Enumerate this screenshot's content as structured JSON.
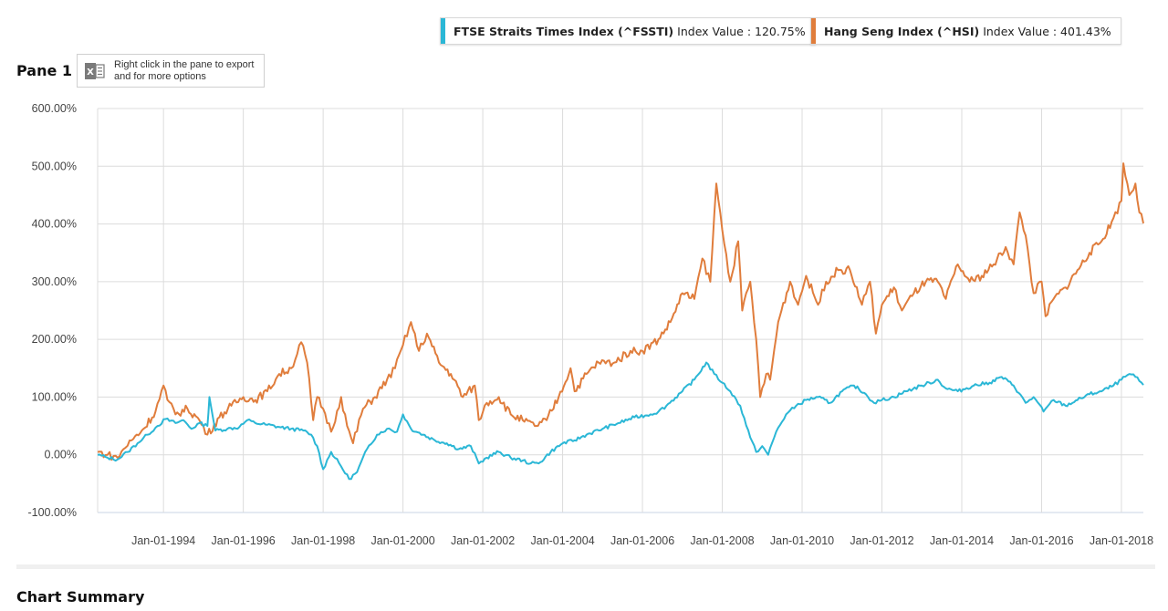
{
  "legend": [
    {
      "name": "FTSE Straits Times Index (^FSSTI)",
      "value_label": "Index Value : 120.75%",
      "color": "#2bb7d6"
    },
    {
      "name": "Hang Seng Index (^HSI)",
      "value_label": "Index Value : 401.43%",
      "color": "#e07d3c"
    }
  ],
  "pane": {
    "title": "Pane 1",
    "export_hint": "Right click in the pane to export and for more options",
    "export_icon": "excel-icon"
  },
  "summary": {
    "title": "Chart Summary"
  },
  "chart_data": {
    "type": "line",
    "title": "",
    "xlabel": "",
    "ylabel": "",
    "x_range": [
      1992.35,
      2018.55
    ],
    "ylim": [
      -100,
      600
    ],
    "y_ticks": [
      600,
      500,
      400,
      300,
      200,
      100,
      0,
      -100
    ],
    "y_tick_labels": [
      "600.00%",
      "500.00%",
      "400.00%",
      "300.00%",
      "200.00%",
      "100.00%",
      "0.00%",
      "-100.00%"
    ],
    "x_ticks": [
      1994,
      1996,
      1998,
      2000,
      2002,
      2004,
      2006,
      2008,
      2010,
      2012,
      2014,
      2016,
      2018
    ],
    "x_tick_labels": [
      "Jan-01-1994",
      "Jan-01-1996",
      "Jan-01-1998",
      "Jan-01-2000",
      "Jan-01-2002",
      "Jan-01-2004",
      "Jan-01-2006",
      "Jan-01-2008",
      "Jan-01-2010",
      "Jan-01-2012",
      "Jan-01-2014",
      "Jan-01-2016",
      "Jan-01-2018"
    ],
    "grid": true,
    "legend_position": "top-right",
    "series": [
      {
        "name": "FTSE Straits Times Index (^FSSTI)",
        "color": "#2bb7d6",
        "final_value": 120.75,
        "x": [
          1992.35,
          1992.6,
          1992.85,
          1993.1,
          1993.35,
          1993.6,
          1993.85,
          1994.05,
          1994.3,
          1994.5,
          1994.7,
          1994.9,
          1995.1,
          1995.15,
          1995.3,
          1995.6,
          1995.9,
          1996.1,
          1996.3,
          1996.6,
          1996.9,
          1997.2,
          1997.5,
          1997.7,
          1997.85,
          1998.0,
          1998.2,
          1998.45,
          1998.65,
          1998.85,
          1999.1,
          1999.35,
          1999.6,
          1999.85,
          2000.0,
          2000.2,
          2000.5,
          2000.8,
          2001.1,
          2001.4,
          2001.7,
          2001.9,
          2002.1,
          2002.4,
          2002.7,
          2003.0,
          2003.2,
          2003.4,
          2003.7,
          2004.0,
          2004.3,
          2004.6,
          2005.0,
          2005.4,
          2005.8,
          2006.2,
          2006.4,
          2006.6,
          2007.0,
          2007.3,
          2007.6,
          2007.8,
          2008.0,
          2008.2,
          2008.45,
          2008.7,
          2008.85,
          2009.0,
          2009.15,
          2009.35,
          2009.6,
          2009.85,
          2010.1,
          2010.4,
          2010.7,
          2011.0,
          2011.3,
          2011.6,
          2011.8,
          2012.0,
          2012.3,
          2012.6,
          2013.0,
          2013.4,
          2013.6,
          2013.9,
          2014.3,
          2014.7,
          2015.0,
          2015.3,
          2015.6,
          2015.8,
          2016.05,
          2016.3,
          2016.6,
          2016.9,
          2017.2,
          2017.5,
          2017.8,
          2018.0,
          2018.2,
          2018.35,
          2018.55
        ],
        "values": [
          0,
          -5,
          -8,
          5,
          20,
          35,
          50,
          62,
          55,
          60,
          45,
          55,
          50,
          100,
          42,
          45,
          48,
          60,
          55,
          52,
          48,
          45,
          42,
          35,
          15,
          -25,
          5,
          -20,
          -42,
          -30,
          10,
          35,
          45,
          40,
          70,
          45,
          35,
          25,
          20,
          10,
          15,
          -15,
          -5,
          5,
          -5,
          -10,
          -15,
          -15,
          5,
          20,
          25,
          35,
          45,
          55,
          65,
          70,
          75,
          85,
          110,
          130,
          160,
          140,
          125,
          110,
          85,
          30,
          5,
          15,
          0,
          40,
          70,
          85,
          95,
          100,
          90,
          110,
          120,
          105,
          90,
          95,
          100,
          110,
          120,
          130,
          115,
          110,
          120,
          125,
          135,
          120,
          90,
          100,
          75,
          95,
          85,
          95,
          105,
          110,
          120,
          130,
          140,
          135,
          121
        ]
      },
      {
        "name": "Hang Seng Index (^HSI)",
        "color": "#e07d3c",
        "final_value": 401.43,
        "x": [
          1992.35,
          1992.6,
          1992.85,
          1993.0,
          1993.2,
          1993.5,
          1993.8,
          1994.0,
          1994.1,
          1994.3,
          1994.6,
          1994.9,
          1995.1,
          1995.4,
          1995.7,
          1996.0,
          1996.3,
          1996.6,
          1996.9,
          1997.2,
          1997.45,
          1997.6,
          1997.75,
          1997.85,
          1998.0,
          1998.2,
          1998.45,
          1998.6,
          1998.75,
          1999.0,
          1999.3,
          1999.6,
          1999.8,
          2000.0,
          2000.2,
          2000.4,
          2000.6,
          2000.9,
          2001.2,
          2001.5,
          2001.8,
          2001.9,
          2002.1,
          2002.4,
          2002.7,
          2003.0,
          2003.3,
          2003.6,
          2003.9,
          2004.2,
          2004.3,
          2004.6,
          2004.9,
          2005.3,
          2005.7,
          2006.0,
          2006.4,
          2006.7,
          2007.0,
          2007.3,
          2007.5,
          2007.7,
          2007.85,
          2008.0,
          2008.2,
          2008.4,
          2008.5,
          2008.7,
          2008.85,
          2008.95,
          2009.1,
          2009.2,
          2009.4,
          2009.7,
          2009.9,
          2010.1,
          2010.4,
          2010.6,
          2010.9,
          2011.2,
          2011.5,
          2011.7,
          2011.85,
          2012.0,
          2012.3,
          2012.5,
          2012.8,
          2013.1,
          2013.4,
          2013.6,
          2013.9,
          2014.2,
          2014.5,
          2014.8,
          2015.1,
          2015.3,
          2015.45,
          2015.6,
          2015.8,
          2016.0,
          2016.1,
          2016.3,
          2016.6,
          2016.9,
          2017.2,
          2017.5,
          2017.8,
          2018.0,
          2018.05,
          2018.2,
          2018.35,
          2018.45,
          2018.55
        ],
        "values": [
          5,
          0,
          -5,
          10,
          25,
          45,
          75,
          120,
          95,
          70,
          80,
          60,
          35,
          65,
          85,
          100,
          95,
          110,
          140,
          150,
          195,
          160,
          60,
          100,
          80,
          40,
          100,
          50,
          20,
          80,
          100,
          130,
          150,
          190,
          230,
          180,
          210,
          160,
          140,
          100,
          120,
          60,
          90,
          100,
          70,
          60,
          50,
          60,
          100,
          150,
          110,
          140,
          160,
          160,
          180,
          180,
          200,
          230,
          280,
          270,
          340,
          300,
          470,
          390,
          300,
          370,
          250,
          300,
          200,
          100,
          140,
          130,
          230,
          300,
          260,
          310,
          260,
          300,
          320,
          320,
          260,
          300,
          210,
          260,
          290,
          250,
          280,
          300,
          300,
          270,
          330,
          300,
          310,
          330,
          360,
          330,
          420,
          380,
          280,
          300,
          240,
          270,
          290,
          320,
          350,
          370,
          410,
          440,
          505,
          450,
          470,
          420,
          401
        ]
      }
    ]
  }
}
